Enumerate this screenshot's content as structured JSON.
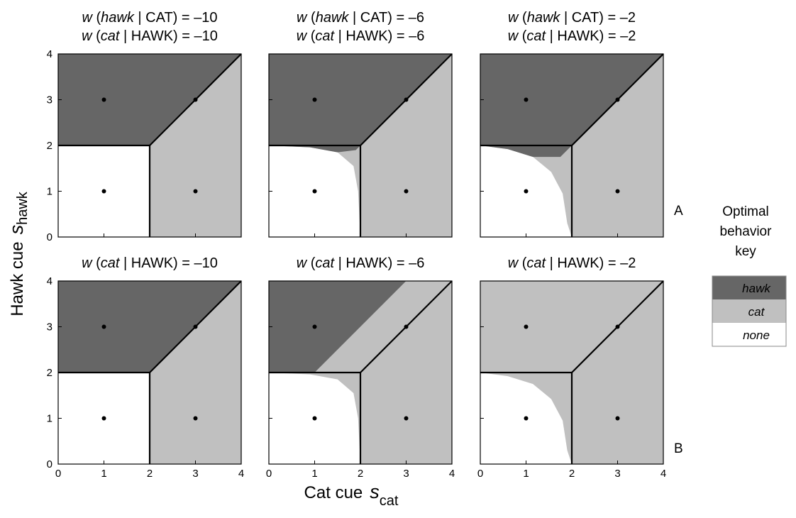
{
  "figure": {
    "ylabel": "Hawk cue",
    "ylabel_symbol": "s",
    "ylabel_sub": "hawk",
    "xlabel": "Cat cue",
    "xlabel_symbol": "s",
    "xlabel_sub": "cat",
    "row_labels": [
      "A",
      "B"
    ]
  },
  "legend": {
    "title_lines": [
      "Optimal",
      "behavior",
      "key"
    ],
    "entries": [
      {
        "label": "hawk",
        "color": "#666666"
      },
      {
        "label": "cat",
        "color": "#c0c0c0"
      },
      {
        "label": "none",
        "color": "#ffffff"
      }
    ]
  },
  "colors": {
    "hawk": "#666666",
    "cat": "#c0c0c0",
    "none": "#ffffff",
    "marker": "#000000"
  },
  "chart_data": [
    {
      "type": "heatmap",
      "row": "A",
      "col": 1,
      "title_lines": [
        {
          "w": "w",
          "open": " (",
          "italic": "hawk",
          "rest": " | CAT) = –10"
        },
        {
          "w": "w",
          "open": " (",
          "italic": "cat",
          "rest": " | HAWK) = –10"
        }
      ],
      "regions": {
        "hawk": [
          [
            0,
            2
          ],
          [
            2,
            2
          ],
          [
            4,
            4
          ],
          [
            0,
            4
          ]
        ],
        "cat": [
          [
            2,
            0
          ],
          [
            4,
            0
          ],
          [
            4,
            4
          ],
          [
            2,
            2
          ]
        ],
        "none": [
          [
            0,
            0
          ],
          [
            2,
            0
          ],
          [
            2,
            2
          ],
          [
            0,
            2
          ]
        ]
      },
      "xlim": [
        0,
        4
      ],
      "ylim": [
        0,
        4
      ],
      "xticks": [
        0,
        1,
        2,
        3,
        4
      ],
      "yticks": [
        0,
        1,
        2,
        3,
        4
      ],
      "points": [
        [
          1,
          1
        ],
        [
          3,
          1
        ],
        [
          1,
          3
        ],
        [
          3,
          3
        ]
      ]
    },
    {
      "type": "heatmap",
      "row": "A",
      "col": 2,
      "title_lines": [
        {
          "w": "w",
          "open": " (",
          "italic": "hawk",
          "rest": " | CAT) = –6"
        },
        {
          "w": "w",
          "open": " (",
          "italic": "cat",
          "rest": " | HAWK) = –6"
        }
      ],
      "regions": {
        "hawk": [
          [
            0,
            2
          ],
          [
            2,
            2
          ],
          [
            4,
            4
          ],
          [
            0,
            4
          ]
        ],
        "cat": [
          [
            2,
            0
          ],
          [
            4,
            0
          ],
          [
            4,
            4
          ],
          [
            2,
            2
          ]
        ],
        "none": [
          [
            0,
            0
          ],
          [
            2,
            0
          ],
          [
            2,
            2
          ],
          [
            0,
            2
          ]
        ]
      },
      "none_curve": [
        [
          0,
          2
        ],
        [
          0.9,
          1.96
        ],
        [
          1.5,
          1.85
        ],
        [
          1.85,
          1.55
        ],
        [
          1.95,
          1.0
        ],
        [
          2,
          0
        ]
      ],
      "split_point": [
        1.9,
        1.9
      ],
      "xlim": [
        0,
        4
      ],
      "ylim": [
        0,
        4
      ],
      "xticks": [
        0,
        1,
        2,
        3,
        4
      ],
      "yticks": [
        0,
        1,
        2,
        3,
        4
      ],
      "points": [
        [
          1,
          1
        ],
        [
          3,
          1
        ],
        [
          1,
          3
        ],
        [
          3,
          3
        ]
      ]
    },
    {
      "type": "heatmap",
      "row": "A",
      "col": 3,
      "title_lines": [
        {
          "w": "w",
          "open": " (",
          "italic": "hawk",
          "rest": " | CAT) = –2"
        },
        {
          "w": "w",
          "open": " (",
          "italic": "cat",
          "rest": " | HAWK) = –2"
        }
      ],
      "regions": {
        "hawk": [
          [
            0,
            2
          ],
          [
            2,
            2
          ],
          [
            4,
            4
          ],
          [
            0,
            4
          ]
        ],
        "cat": [
          [
            2,
            0
          ],
          [
            4,
            0
          ],
          [
            4,
            4
          ],
          [
            2,
            2
          ]
        ],
        "none": [
          [
            0,
            0
          ],
          [
            2,
            0
          ],
          [
            2,
            2
          ],
          [
            0,
            2
          ]
        ]
      },
      "none_curve": [
        [
          0,
          2
        ],
        [
          0.6,
          1.92
        ],
        [
          1.15,
          1.75
        ],
        [
          1.55,
          1.42
        ],
        [
          1.8,
          0.95
        ],
        [
          1.9,
          0.3
        ],
        [
          2,
          0
        ]
      ],
      "split_point": [
        1.75,
        1.75
      ],
      "xlim": [
        0,
        4
      ],
      "ylim": [
        0,
        4
      ],
      "xticks": [
        0,
        1,
        2,
        3,
        4
      ],
      "yticks": [
        0,
        1,
        2,
        3,
        4
      ],
      "points": [
        [
          1,
          1
        ],
        [
          3,
          1
        ],
        [
          1,
          3
        ],
        [
          3,
          3
        ]
      ]
    },
    {
      "type": "heatmap",
      "row": "B",
      "col": 1,
      "title_lines": [
        {
          "w": "w",
          "open": " (",
          "italic": "cat",
          "rest": " | HAWK) = –10"
        }
      ],
      "regions": {
        "hawk": [
          [
            0,
            2
          ],
          [
            2,
            2
          ],
          [
            4,
            4
          ],
          [
            0,
            4
          ]
        ],
        "cat": [
          [
            2,
            0
          ],
          [
            4,
            0
          ],
          [
            4,
            4
          ],
          [
            2,
            2
          ]
        ],
        "none": [
          [
            0,
            0
          ],
          [
            2,
            0
          ],
          [
            2,
            2
          ],
          [
            0,
            2
          ]
        ]
      },
      "xlim": [
        0,
        4
      ],
      "ylim": [
        0,
        4
      ],
      "xticks": [
        0,
        1,
        2,
        3,
        4
      ],
      "yticks": [
        0,
        1,
        2,
        3,
        4
      ],
      "points": [
        [
          1,
          1
        ],
        [
          3,
          1
        ],
        [
          1,
          3
        ],
        [
          3,
          3
        ]
      ]
    },
    {
      "type": "heatmap",
      "row": "B",
      "col": 2,
      "title_lines": [
        {
          "w": "w",
          "open": " (",
          "italic": "cat",
          "rest": " | HAWK) = –6"
        }
      ],
      "regions": {
        "hawk": [
          [
            0,
            2
          ],
          [
            1,
            2
          ],
          [
            3,
            4
          ],
          [
            0,
            4
          ]
        ],
        "cat": [
          [
            1,
            2
          ],
          [
            2,
            2
          ],
          [
            2,
            0
          ],
          [
            4,
            0
          ],
          [
            4,
            4
          ],
          [
            3,
            4
          ]
        ],
        "none": [
          [
            0,
            0
          ],
          [
            2,
            0
          ],
          [
            2,
            2
          ],
          [
            0,
            2
          ]
        ]
      },
      "none_curve": [
        [
          0,
          2
        ],
        [
          0.9,
          1.96
        ],
        [
          1.5,
          1.85
        ],
        [
          1.85,
          1.55
        ],
        [
          1.95,
          1.0
        ],
        [
          2,
          0
        ]
      ],
      "xlim": [
        0,
        4
      ],
      "ylim": [
        0,
        4
      ],
      "xticks": [
        0,
        1,
        2,
        3,
        4
      ],
      "yticks": [
        0,
        1,
        2,
        3,
        4
      ],
      "points": [
        [
          1,
          1
        ],
        [
          3,
          1
        ],
        [
          1,
          3
        ],
        [
          3,
          3
        ]
      ]
    },
    {
      "type": "heatmap",
      "row": "B",
      "col": 3,
      "title_lines": [
        {
          "w": "w",
          "open": " (",
          "italic": "cat",
          "rest": " | HAWK) = –2"
        }
      ],
      "regions": {
        "cat": [
          [
            0,
            0
          ],
          [
            4,
            0
          ],
          [
            4,
            4
          ],
          [
            0,
            4
          ]
        ],
        "none": [
          [
            0,
            0
          ],
          [
            2,
            0
          ],
          [
            2,
            2
          ],
          [
            0,
            2
          ]
        ]
      },
      "none_curve": [
        [
          0,
          2
        ],
        [
          0.6,
          1.92
        ],
        [
          1.15,
          1.75
        ],
        [
          1.55,
          1.42
        ],
        [
          1.8,
          0.95
        ],
        [
          1.9,
          0.3
        ],
        [
          2,
          0
        ]
      ],
      "xlim": [
        0,
        4
      ],
      "ylim": [
        0,
        4
      ],
      "xticks": [
        0,
        1,
        2,
        3,
        4
      ],
      "yticks": [
        0,
        1,
        2,
        3,
        4
      ],
      "points": [
        [
          1,
          1
        ],
        [
          3,
          1
        ],
        [
          1,
          3
        ],
        [
          3,
          3
        ]
      ]
    }
  ]
}
